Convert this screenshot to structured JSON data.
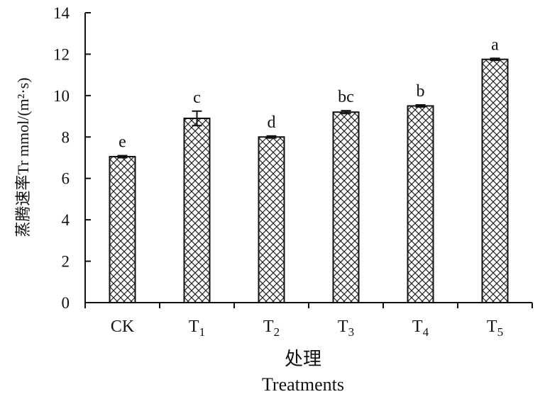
{
  "chart_data": {
    "type": "bar",
    "categories": [
      {
        "main": "CK",
        "sub": ""
      },
      {
        "main": "T",
        "sub": "1"
      },
      {
        "main": "T",
        "sub": "2"
      },
      {
        "main": "T",
        "sub": "3"
      },
      {
        "main": "T",
        "sub": "4"
      },
      {
        "main": "T",
        "sub": "5"
      }
    ],
    "values": [
      7.05,
      8.9,
      8.0,
      9.2,
      9.5,
      11.75
    ],
    "errors": [
      0.05,
      0.35,
      0.05,
      0.07,
      0.05,
      0.05
    ],
    "significance": [
      "e",
      "c",
      "d",
      "bc",
      "b",
      "a"
    ],
    "ylim": [
      0,
      14
    ],
    "yticks": [
      0,
      2,
      4,
      6,
      8,
      10,
      12,
      14
    ],
    "ylabel": "蒸腾速率Tr mmol/(m²·s)",
    "xlabel_cn": "处理",
    "xlabel_en": "Treatments",
    "grid": false,
    "bar_pattern": "crosshatch",
    "colors": {
      "axis": "#111111",
      "bar_stroke": "#111111",
      "bar_fill": "#ffffff"
    }
  }
}
